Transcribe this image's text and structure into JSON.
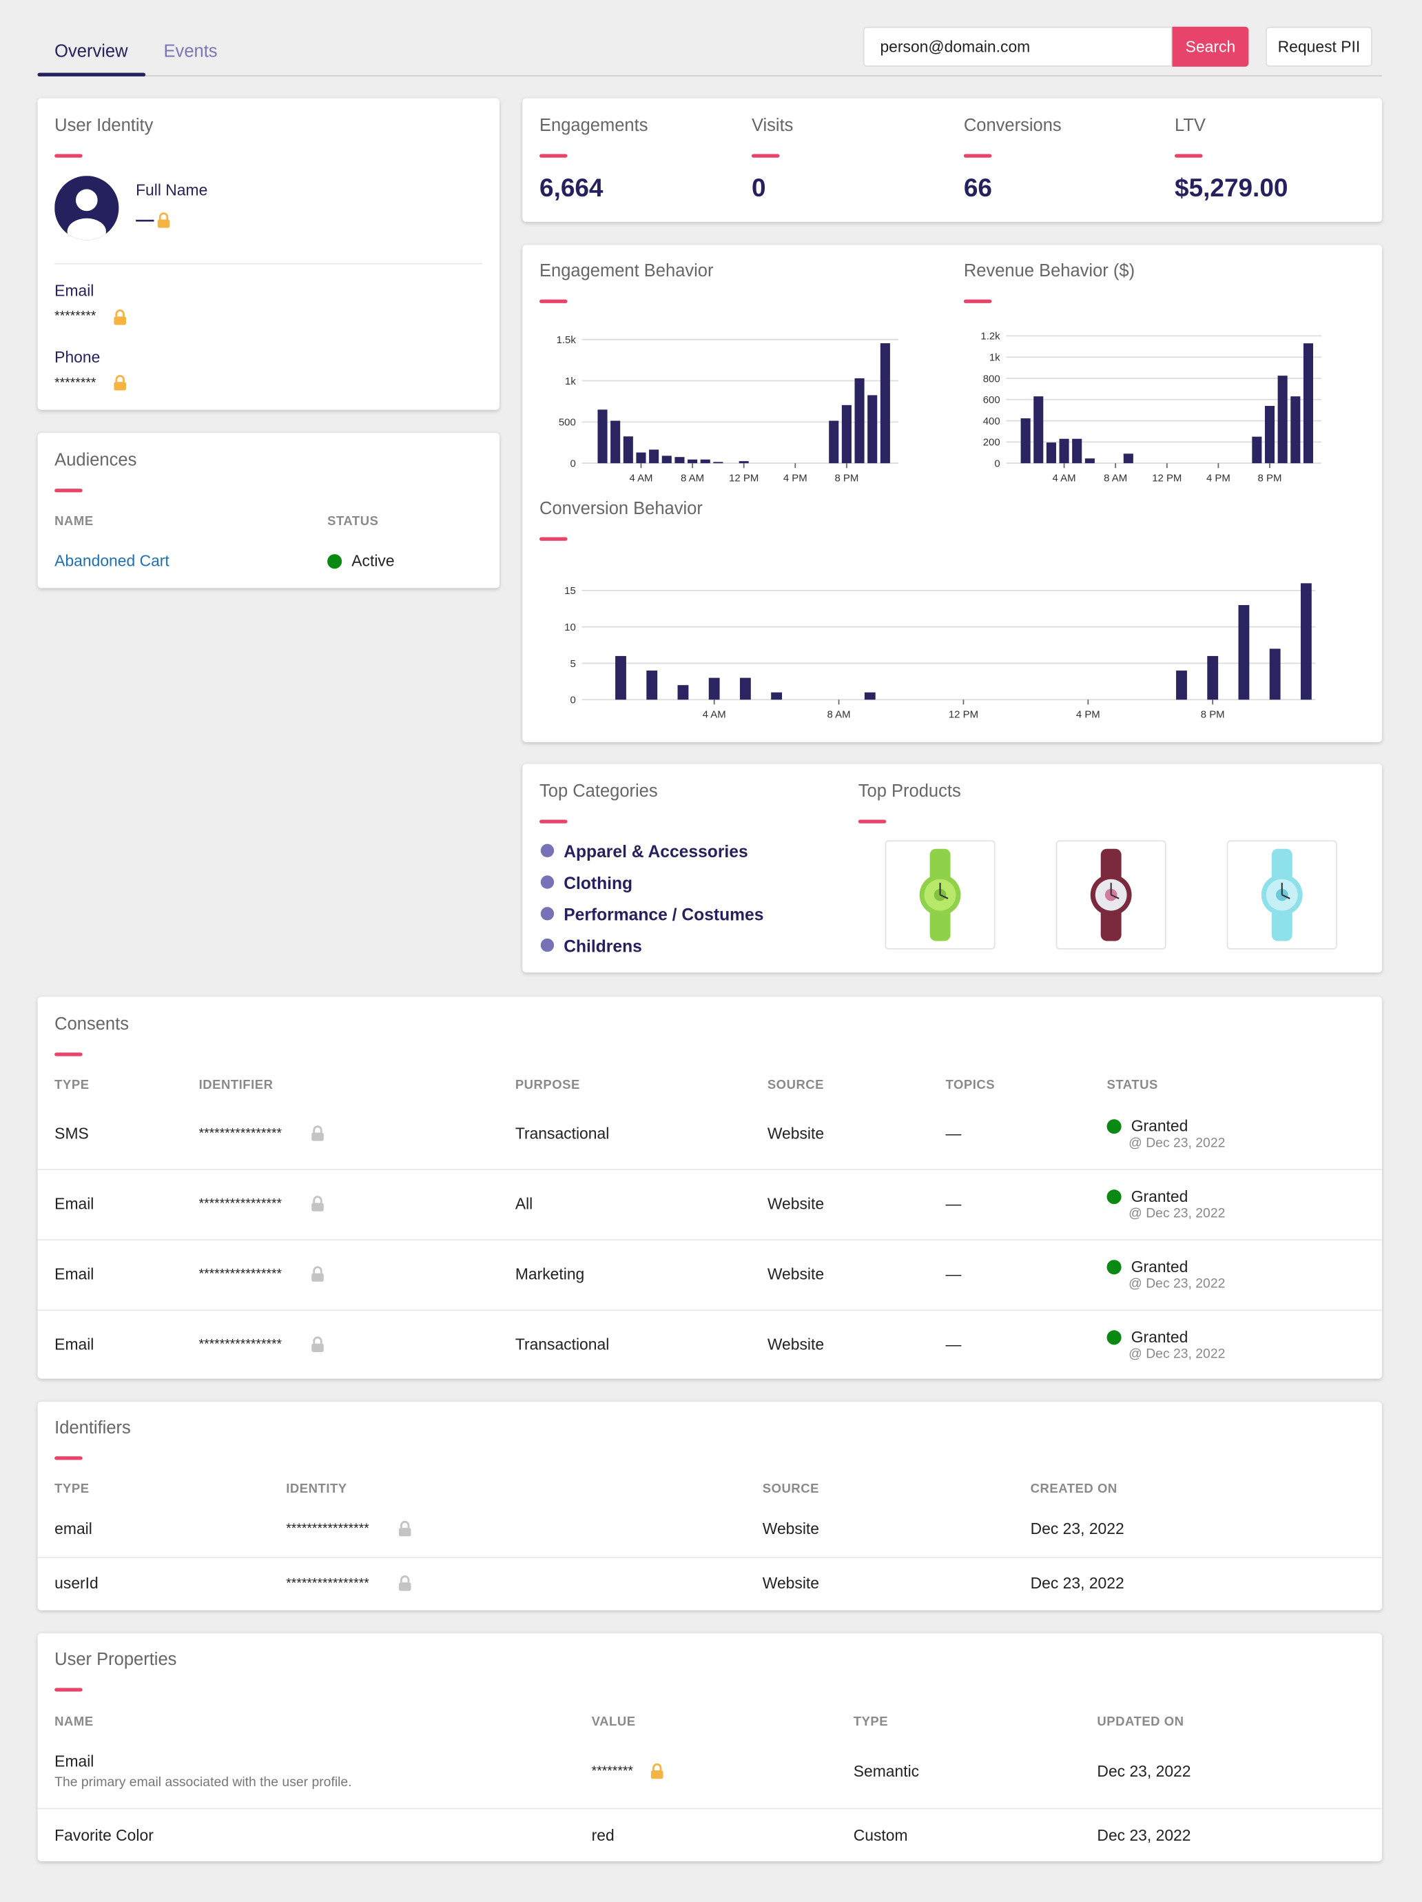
{
  "tabs": [
    "Overview",
    "Events"
  ],
  "search": {
    "value": "person@domain.com",
    "button": "Search"
  },
  "request_button": "Request PII",
  "identity": {
    "title": "User Identity",
    "full_name_label": "Full Name",
    "full_name": "—",
    "email_label": "Email",
    "email": "********",
    "phone_label": "Phone",
    "phone": "********"
  },
  "audiences": {
    "title": "Audiences",
    "columns": [
      "NAME",
      "STATUS"
    ],
    "rows": [
      [
        "Abandoned Cart",
        "Active"
      ]
    ]
  },
  "stats": [
    {
      "label": "Engagements",
      "value": "6,664"
    },
    {
      "label": "Visits",
      "value": "0"
    },
    {
      "label": "Conversions",
      "value": "66"
    },
    {
      "label": "LTV",
      "value": "$5,279.00"
    }
  ],
  "chart_data": [
    {
      "type": "bar",
      "title": "Engagement Behavior",
      "color": "#2a2460",
      "categories": [
        null,
        null,
        null,
        "4 AM",
        null,
        null,
        null,
        "8 AM",
        null,
        null,
        null,
        "12 PM",
        null,
        null,
        null,
        "4 PM",
        null,
        null,
        null,
        "8 PM",
        null,
        null,
        null
      ],
      "values": [
        650,
        515,
        325,
        130,
        165,
        90,
        75,
        45,
        45,
        15,
        0,
        25,
        0,
        0,
        0,
        0,
        0,
        0,
        515,
        705,
        1030,
        825,
        1455
      ],
      "ylim": [
        0,
        1500
      ],
      "yticks": [
        0,
        500,
        {
          "value": 1000,
          "label": "1k"
        },
        {
          "value": 1500,
          "label": "1.5k"
        }
      ],
      "grid": true
    },
    {
      "type": "bar",
      "title": "Revenue Behavior ($)",
      "color": "#2a2460",
      "categories": [
        null,
        null,
        null,
        "4 AM",
        null,
        null,
        null,
        "8 AM",
        null,
        null,
        null,
        "12 PM",
        null,
        null,
        null,
        "4 PM",
        null,
        null,
        null,
        "8 PM",
        null,
        null,
        null
      ],
      "values": [
        423,
        630,
        195,
        230,
        230,
        45,
        0,
        0,
        90,
        0,
        0,
        0,
        0,
        0,
        0,
        0,
        0,
        0,
        250,
        540,
        825,
        630,
        1130
      ],
      "ylim": [
        0,
        1200
      ],
      "yticks": [
        0,
        200,
        400,
        600,
        800,
        {
          "value": 1000,
          "label": "1k"
        },
        {
          "value": 1200,
          "label": "1.2k"
        }
      ],
      "grid": true
    },
    {
      "type": "bar",
      "title": "Conversion Behavior",
      "color": "#2a2460",
      "categories": [
        null,
        null,
        null,
        "4 AM",
        null,
        null,
        null,
        "8 AM",
        null,
        null,
        null,
        "12 PM",
        null,
        null,
        null,
        "4 PM",
        null,
        null,
        null,
        "8 PM",
        null,
        null,
        null
      ],
      "values": [
        6,
        4,
        2,
        3,
        3,
        1,
        0,
        0,
        1,
        0,
        0,
        0,
        0,
        0,
        0,
        0,
        0,
        0,
        4,
        6,
        13,
        7,
        16
      ],
      "ylim": [
        0,
        16
      ],
      "yticks": [
        0,
        5,
        10,
        15
      ],
      "grid": true
    }
  ],
  "top_categories": {
    "title": "Top Categories",
    "items": [
      "Apparel & Accessories",
      "Clothing",
      "Performance / Costumes",
      "Childrens"
    ]
  },
  "top_products": {
    "title": "Top Products"
  },
  "consents": {
    "title": "Consents",
    "columns": [
      "TYPE",
      "IDENTIFIER",
      "PURPOSE",
      "SOURCE",
      "TOPICS",
      "STATUS"
    ],
    "rows": [
      [
        "SMS",
        "****************",
        "Transactional",
        "Website",
        "—",
        "Granted",
        "@ Dec 23, 2022"
      ],
      [
        "Email",
        "****************",
        "All",
        "Website",
        "—",
        "Granted",
        "@ Dec 23, 2022"
      ],
      [
        "Email",
        "****************",
        "Marketing",
        "Website",
        "—",
        "Granted",
        "@ Dec 23, 2022"
      ],
      [
        "Email",
        "****************",
        "Transactional",
        "Website",
        "—",
        "Granted",
        "@ Dec 23, 2022"
      ]
    ]
  },
  "identifiers": {
    "title": "Identifiers",
    "columns": [
      "TYPE",
      "IDENTITY",
      "SOURCE",
      "CREATED ON"
    ],
    "rows": [
      [
        "email",
        "****************",
        "Website",
        "Dec 23, 2022"
      ],
      [
        "userId",
        "****************",
        "Website",
        "Dec 23, 2022"
      ]
    ]
  },
  "properties": {
    "title": "User Properties",
    "columns": [
      "NAME",
      "VALUE",
      "TYPE",
      "UPDATED ON"
    ],
    "rows": [
      {
        "name": "Email",
        "description": "The primary email associated with the user profile.",
        "value": "********",
        "type": "Semantic",
        "updated": "Dec 23, 2022"
      },
      {
        "name": "Favorite Color",
        "value": "red",
        "type": "Custom",
        "updated": "Dec 23, 2022"
      }
    ]
  }
}
